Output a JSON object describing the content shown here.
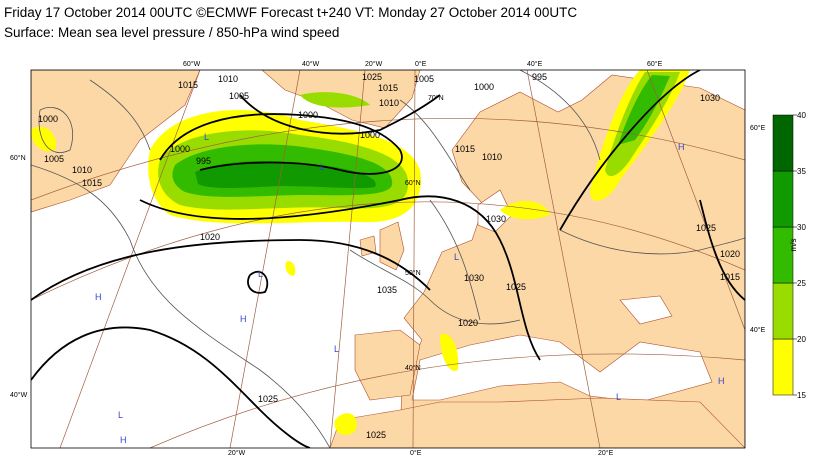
{
  "header": {
    "line1": "Friday 17 October 2014 00UTC ©ECMWF Forecast t+240 VT: Monday 27 October 2014 00UTC",
    "line2": "Surface: Mean sea level pressure / 850-hPa wind speed"
  },
  "colorbar": {
    "unit": "m/s",
    "ticks": [
      15,
      20,
      25,
      30,
      35,
      40
    ],
    "colors": [
      "#ffff00",
      "#99dd00",
      "#33bb00",
      "#119900",
      "#006600"
    ]
  },
  "graticule_labels": [
    "60°W",
    "40°W",
    "20°W",
    "0°E",
    "40°E",
    "60°E",
    "60°N",
    "40°W",
    "60°E",
    "40°E",
    "20°W",
    "0°E",
    "20°E",
    "70°N",
    "60°N",
    "50°N",
    "40°N"
  ],
  "isobar_labels": [
    "1015",
    "1010",
    "1005",
    "1025",
    "1015",
    "1010",
    "1005",
    "1000",
    "995",
    "1000",
    "1000",
    "1000",
    "995",
    "1000",
    "1005",
    "1010",
    "1015",
    "1020",
    "1015",
    "1010",
    "1030",
    "1035",
    "1030",
    "1025",
    "1020",
    "1030",
    "1025",
    "1020",
    "1015",
    "1025",
    "1025"
  ],
  "pressure_centers": [
    "L",
    "L",
    "H",
    "L",
    "H",
    "L",
    "H",
    "L",
    "H",
    "L",
    "H",
    "L"
  ]
}
